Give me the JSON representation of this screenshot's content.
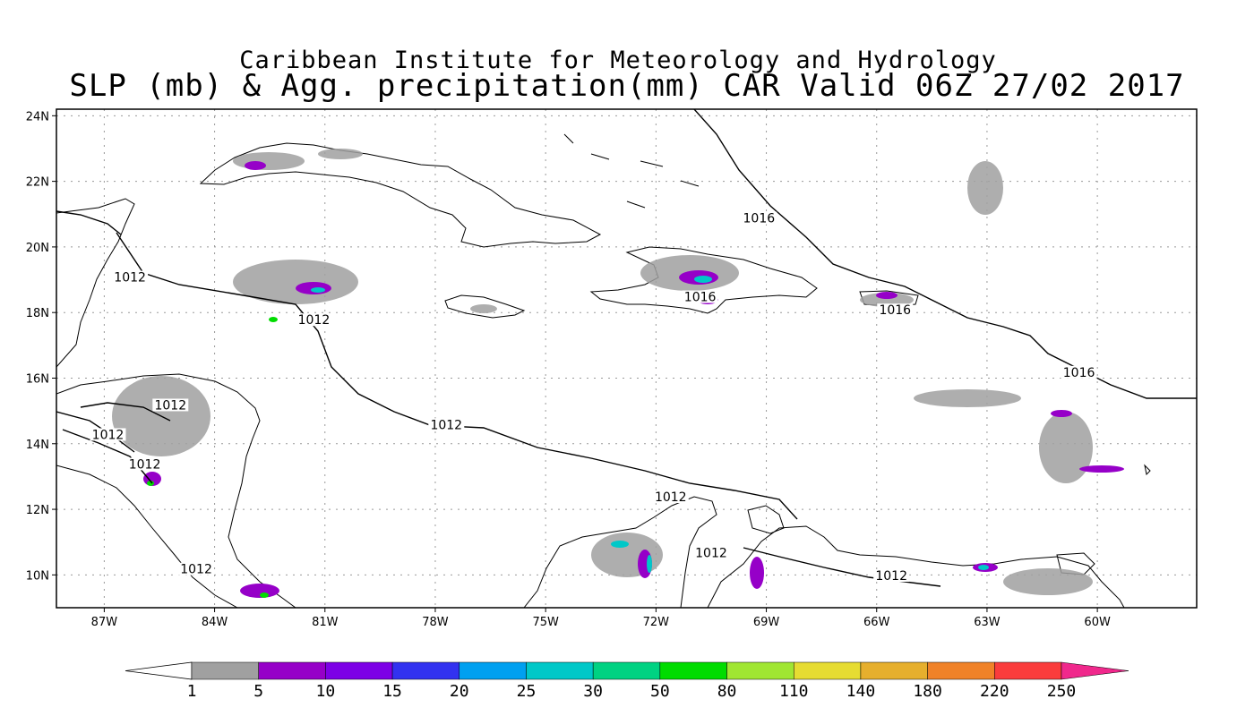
{
  "title": {
    "line1": "Caribbean Institute for Meteorology and Hydrology",
    "line2": "SLP (mb) & Agg. precipitation(mm) CAR Valid 06Z 27/02 2017"
  },
  "map": {
    "lat_labels": [
      "24N",
      "22N",
      "20N",
      "18N",
      "16N",
      "14N",
      "12N",
      "10N"
    ],
    "lon_labels": [
      "87W",
      "84W",
      "81W",
      "78W",
      "75W",
      "72W",
      "69W",
      "66W",
      "63W",
      "60W"
    ],
    "lat_range": [
      9,
      24.2
    ],
    "lon_range": [
      -88.3,
      -57.3
    ],
    "isobar_labels": [
      {
        "text": "1016",
        "lon": -69.2,
        "lat": 20.8
      },
      {
        "text": "1012",
        "lon": -86.3,
        "lat": 19.0
      },
      {
        "text": "1012",
        "lon": -81.3,
        "lat": 17.7
      },
      {
        "text": "1016",
        "lon": -70.8,
        "lat": 18.4
      },
      {
        "text": "1016",
        "lon": -65.5,
        "lat": 18.0
      },
      {
        "text": "1016",
        "lon": -60.5,
        "lat": 16.1
      },
      {
        "text": "1012",
        "lon": -85.2,
        "lat": 15.1
      },
      {
        "text": "1012",
        "lon": -86.9,
        "lat": 14.2
      },
      {
        "text": "1012",
        "lon": -85.9,
        "lat": 13.3
      },
      {
        "text": "1012",
        "lon": -77.7,
        "lat": 14.5
      },
      {
        "text": "1012",
        "lon": -71.6,
        "lat": 12.3
      },
      {
        "text": "1012",
        "lon": -70.5,
        "lat": 10.6
      },
      {
        "text": "1012",
        "lon": -84.5,
        "lat": 10.1
      },
      {
        "text": "1012",
        "lon": -65.6,
        "lat": 9.9
      }
    ]
  },
  "colorbar": {
    "labels": [
      "1",
      "5",
      "10",
      "15",
      "20",
      "25",
      "30",
      "50",
      "80",
      "110",
      "140",
      "180",
      "220",
      "250"
    ],
    "colors": [
      "#ffffff",
      "#a0a0a0",
      "#9600c8",
      "#7d00e6",
      "#3232f0",
      "#00a0f0",
      "#00c8c8",
      "#00d282",
      "#00dc00",
      "#a0e632",
      "#e6dc32",
      "#e6af2d",
      "#f08228",
      "#fa3c3c",
      "#f0288c"
    ]
  }
}
